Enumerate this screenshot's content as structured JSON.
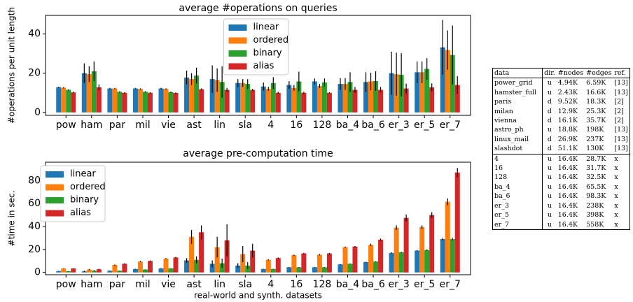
{
  "chart_data": [
    {
      "type": "bar",
      "title": "average #operations on queries",
      "ylabel": "#operations per unit length",
      "categories": [
        "pow",
        "ham",
        "par",
        "mil",
        "vie",
        "ast",
        "lin",
        "sla",
        "4",
        "16",
        "128",
        "ba_4",
        "ba_6",
        "er_3",
        "er_5",
        "er_7"
      ],
      "ylim": [
        -1.5,
        49.5
      ],
      "yticks": [
        0,
        20,
        40
      ],
      "legend": "upper center",
      "series": [
        {
          "name": "linear",
          "color": "#1f77b4",
          "values": [
            12.8,
            20,
            12.2,
            12.2,
            12.2,
            17.8,
            17,
            15,
            13.2,
            14,
            15.8,
            14.5,
            15.5,
            20,
            20.5,
            33.2
          ],
          "errors": [
            0.3,
            5,
            0.3,
            0.3,
            0.3,
            3.5,
            7,
            2,
            2,
            2,
            1.5,
            3,
            5,
            11,
            5.5,
            14
          ]
        },
        {
          "name": "ordered",
          "color": "#ff7f0e",
          "values": [
            12.6,
            19.5,
            12.2,
            12,
            12,
            17,
            16.5,
            15,
            12,
            12.5,
            13.5,
            14.5,
            15.8,
            19.5,
            20.5,
            31.8
          ],
          "errors": [
            0.3,
            4,
            0.3,
            0.3,
            0.3,
            3,
            6,
            2,
            1,
            1.5,
            1,
            3,
            4.5,
            11,
            5.5,
            10
          ]
        },
        {
          "name": "binary",
          "color": "#2ca02c",
          "values": [
            11.5,
            21,
            10.5,
            10.5,
            10.3,
            18.8,
            15.5,
            14.5,
            15,
            15.8,
            15.3,
            15.5,
            16,
            19.2,
            22.2,
            29.3
          ],
          "errors": [
            0.3,
            5,
            0.3,
            0.3,
            0.3,
            4,
            8,
            2.5,
            3,
            5,
            2,
            5,
            5,
            11,
            5.5,
            15
          ]
        },
        {
          "name": "alias",
          "color": "#d62728",
          "values": [
            10.2,
            12.8,
            10,
            10,
            9.9,
            11.8,
            11.5,
            11.5,
            10,
            10,
            10,
            11.5,
            11.5,
            12.2,
            12.8,
            14
          ],
          "errors": [
            0.3,
            1.5,
            0.3,
            0.3,
            0.3,
            0.5,
            1,
            0.5,
            0.5,
            0.5,
            0.3,
            1.5,
            1.5,
            2.5,
            2,
            4.5
          ]
        }
      ]
    },
    {
      "type": "bar",
      "title": "average pre-computation time",
      "ylabel": "#time in sec.",
      "xlabel": "real-world and synth. datasets",
      "categories": [
        "pow",
        "ham",
        "par",
        "mil",
        "vie",
        "ast",
        "lin",
        "sla",
        "4",
        "16",
        "128",
        "ba_4",
        "ba_6",
        "er_3",
        "er_5",
        "er_7"
      ],
      "ylim": [
        -2,
        96
      ],
      "yticks": [
        0,
        20,
        40,
        60,
        80
      ],
      "legend": "upper left",
      "series": [
        {
          "name": "linear",
          "color": "#1f77b4",
          "values": [
            1.2,
            1,
            1.5,
            3,
            3.5,
            10.5,
            7.5,
            6,
            3,
            4.5,
            4.5,
            7,
            9,
            17,
            19,
            29
          ],
          "errors": [
            0.2,
            0.5,
            0.2,
            0.2,
            0.2,
            2,
            3,
            2,
            0.2,
            0.2,
            0.2,
            0.3,
            0.3,
            0.5,
            0.5,
            1
          ]
        },
        {
          "name": "ordered",
          "color": "#ff7f0e",
          "values": [
            3.5,
            2.5,
            6.5,
            9.5,
            12,
            31,
            22,
            16,
            11,
            15,
            15.5,
            22,
            24,
            39,
            39.5,
            61.5
          ],
          "errors": [
            0.2,
            0.5,
            0.5,
            0.5,
            0.5,
            6,
            9,
            7,
            0.5,
            0.5,
            0.5,
            0.5,
            1,
            2,
            1.5,
            3
          ]
        },
        {
          "name": "binary",
          "color": "#2ca02c",
          "values": [
            1,
            1.5,
            1.5,
            2.5,
            3.5,
            11,
            8,
            6,
            3,
            4.5,
            4.5,
            7.5,
            9.5,
            17.5,
            19.5,
            29
          ],
          "errors": [
            0.2,
            0.5,
            0.2,
            0.2,
            0.2,
            3,
            4,
            3,
            0.2,
            0.2,
            0.2,
            0.3,
            0.3,
            0.5,
            0.5,
            1
          ]
        },
        {
          "name": "alias",
          "color": "#d62728",
          "values": [
            3.5,
            2.7,
            7.5,
            10,
            13,
            35,
            28,
            19,
            12.5,
            16.5,
            16.5,
            22.5,
            28.5,
            47.5,
            50,
            87
          ],
          "errors": [
            0.2,
            0.5,
            0.5,
            0.5,
            0.5,
            6,
            14,
            6,
            0.5,
            0.5,
            0.5,
            0.5,
            1,
            3,
            2.5,
            4
          ]
        }
      ]
    }
  ],
  "table": {
    "header": [
      "data",
      "dir.",
      "#nodes",
      "#edges",
      "ref."
    ],
    "rows": [
      [
        "power_grid",
        "u",
        "4.94K",
        "6.59K",
        "[13]"
      ],
      [
        "hamster_full",
        "u",
        "2.43K",
        "16.6K",
        "[13]"
      ],
      [
        "paris",
        "d",
        "9.52K",
        "18.3K",
        "[2]"
      ],
      [
        "milan",
        "d",
        "12.9K",
        "25.3K",
        "[2]"
      ],
      [
        "vienna",
        "d",
        "16.1K",
        "35.7K",
        "[2]"
      ],
      [
        "astro_ph",
        "u",
        "18.8K",
        "198K",
        "[13]"
      ],
      [
        "linux_mail",
        "d",
        "26.9K",
        "237K",
        "[13]"
      ],
      [
        "slashdot",
        "d",
        "51.1K",
        "130K",
        "[13]"
      ],
      [
        "4",
        "u",
        "16.4K",
        "28.7K",
        "x"
      ],
      [
        "16",
        "u",
        "16.4K",
        "31.7K",
        "x"
      ],
      [
        "128",
        "u",
        "16.4K",
        "32.5K",
        "x"
      ],
      [
        "ba_4",
        "u",
        "16.4K",
        "65.5K",
        "x"
      ],
      [
        "ba_6",
        "u",
        "16.4K",
        "98.3K",
        "x"
      ],
      [
        "er_3",
        "u",
        "16.4K",
        "238K",
        "x"
      ],
      [
        "er_5",
        "u",
        "16.4K",
        "398K",
        "x"
      ],
      [
        "er_7",
        "u",
        "16.4K",
        "558K",
        "x"
      ]
    ]
  }
}
